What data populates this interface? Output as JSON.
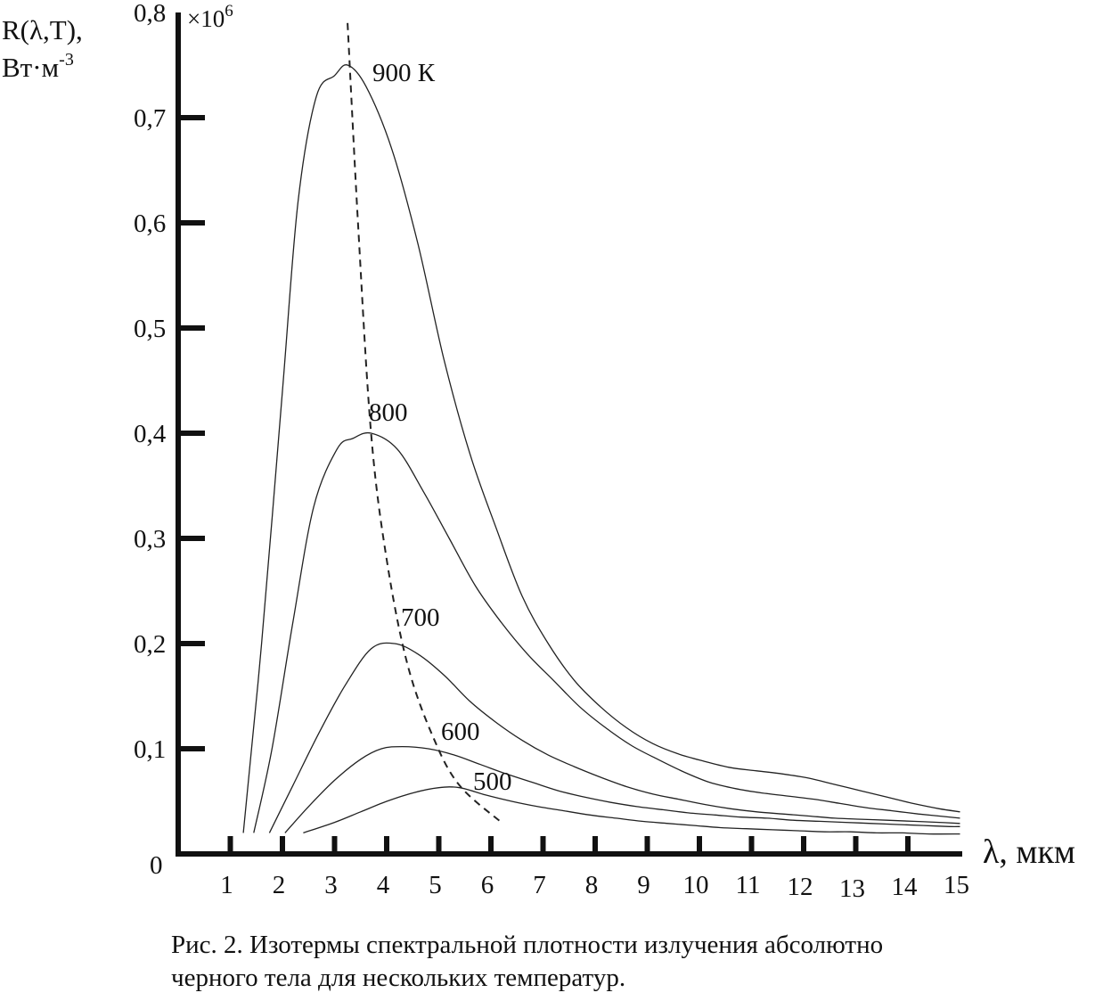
{
  "chart_data": {
    "type": "line",
    "title": "",
    "ylabel_lines": [
      "R(λ,T),",
      "Вт·м"
    ],
    "ylabel_unit_exponent": "-3",
    "y_multiplier": "×10",
    "y_multiplier_exponent": "6",
    "xlabel": "λ, мкм",
    "x_origin_label": "0",
    "xlim": [
      0,
      15
    ],
    "ylim": [
      0,
      0.8
    ],
    "x_ticks": [
      {
        "value": 1,
        "label": "1"
      },
      {
        "value": 2,
        "label": "2"
      },
      {
        "value": 3,
        "label": "3"
      },
      {
        "value": 4,
        "label": "4"
      },
      {
        "value": 5,
        "label": "5"
      },
      {
        "value": 6,
        "label": "6"
      },
      {
        "value": 7,
        "label": "7"
      },
      {
        "value": 8,
        "label": "8"
      },
      {
        "value": 9,
        "label": "9"
      },
      {
        "value": 10,
        "label": "10"
      },
      {
        "value": 11,
        "label": "11"
      },
      {
        "value": 12,
        "label": "12"
      },
      {
        "value": 13,
        "label": "13"
      },
      {
        "value": 14,
        "label": "14"
      },
      {
        "value": 15,
        "label": "15"
      }
    ],
    "y_ticks": [
      {
        "value": 0.1,
        "label": "0,1"
      },
      {
        "value": 0.2,
        "label": "0,2"
      },
      {
        "value": 0.3,
        "label": "0,3"
      },
      {
        "value": 0.4,
        "label": "0,4"
      },
      {
        "value": 0.5,
        "label": "0,5"
      },
      {
        "value": 0.6,
        "label": "0,6"
      },
      {
        "value": 0.7,
        "label": "0,7"
      },
      {
        "value": 0.8,
        "label": "0,8"
      }
    ],
    "series": [
      {
        "name": "900 К",
        "x": [
          1.25,
          1.6,
          2.0,
          2.3,
          2.65,
          3.0,
          3.25,
          3.6,
          4.1,
          4.6,
          5.1,
          5.6,
          6.1,
          6.6,
          7.1,
          7.6,
          8.1,
          8.6,
          9.1,
          9.6,
          10.1,
          10.6,
          11.1,
          11.6,
          12.1,
          12.6,
          13.1,
          13.6,
          14.1,
          14.6,
          15.0
        ],
        "y": [
          0.02,
          0.2,
          0.44,
          0.62,
          0.72,
          0.74,
          0.75,
          0.73,
          0.67,
          0.58,
          0.47,
          0.38,
          0.31,
          0.245,
          0.2,
          0.165,
          0.14,
          0.12,
          0.105,
          0.095,
          0.088,
          0.082,
          0.079,
          0.076,
          0.072,
          0.066,
          0.06,
          0.054,
          0.048,
          0.043,
          0.04
        ]
      },
      {
        "name": "800",
        "x": [
          1.45,
          1.8,
          2.2,
          2.6,
          3.05,
          3.35,
          3.7,
          4.2,
          4.7,
          5.2,
          5.7,
          6.2,
          6.7,
          7.2,
          7.7,
          8.2,
          8.7,
          9.2,
          9.7,
          10.2,
          10.7,
          11.2,
          11.7,
          12.2,
          12.7,
          13.2,
          13.7,
          14.2,
          14.6,
          15.0
        ],
        "y": [
          0.02,
          0.1,
          0.22,
          0.33,
          0.385,
          0.395,
          0.4,
          0.385,
          0.345,
          0.3,
          0.255,
          0.22,
          0.19,
          0.165,
          0.14,
          0.12,
          0.103,
          0.09,
          0.078,
          0.068,
          0.062,
          0.058,
          0.055,
          0.052,
          0.048,
          0.044,
          0.041,
          0.038,
          0.036,
          0.034
        ]
      },
      {
        "name": "700",
        "x": [
          1.75,
          2.2,
          2.7,
          3.2,
          3.7,
          4.15,
          4.6,
          5.1,
          5.6,
          6.1,
          6.6,
          7.1,
          7.6,
          8.1,
          8.6,
          9.1,
          9.6,
          10.1,
          10.6,
          11.1,
          11.6,
          12.1,
          12.6,
          13.1,
          13.6,
          14.1,
          14.6,
          15.0
        ],
        "y": [
          0.02,
          0.065,
          0.115,
          0.16,
          0.195,
          0.2,
          0.19,
          0.17,
          0.145,
          0.125,
          0.108,
          0.094,
          0.083,
          0.073,
          0.064,
          0.057,
          0.052,
          0.047,
          0.043,
          0.04,
          0.038,
          0.036,
          0.034,
          0.033,
          0.032,
          0.031,
          0.03,
          0.029
        ]
      },
      {
        "name": "600",
        "x": [
          2.05,
          2.5,
          3.0,
          3.5,
          3.9,
          4.3,
          4.8,
          5.3,
          5.8,
          6.3,
          6.8,
          7.3,
          7.8,
          8.3,
          8.8,
          9.3,
          9.8,
          10.3,
          10.8,
          11.3,
          11.8,
          12.3,
          12.8,
          13.3,
          13.8,
          14.3,
          14.8,
          15.0
        ],
        "y": [
          0.02,
          0.045,
          0.07,
          0.09,
          0.1,
          0.102,
          0.1,
          0.094,
          0.085,
          0.076,
          0.068,
          0.06,
          0.054,
          0.049,
          0.045,
          0.042,
          0.039,
          0.037,
          0.035,
          0.034,
          0.032,
          0.031,
          0.03,
          0.029,
          0.028,
          0.027,
          0.026,
          0.026
        ]
      },
      {
        "name": "500",
        "x": [
          2.4,
          3.0,
          3.5,
          4.0,
          4.5,
          5.0,
          5.4,
          5.9,
          6.4,
          6.9,
          7.4,
          7.9,
          8.4,
          8.9,
          9.4,
          9.9,
          10.4,
          10.9,
          11.4,
          11.9,
          12.4,
          12.9,
          13.4,
          13.9,
          14.4,
          15.0
        ],
        "y": [
          0.02,
          0.03,
          0.04,
          0.05,
          0.058,
          0.063,
          0.063,
          0.056,
          0.05,
          0.045,
          0.041,
          0.037,
          0.034,
          0.031,
          0.029,
          0.027,
          0.025,
          0.024,
          0.023,
          0.022,
          0.021,
          0.021,
          0.02,
          0.02,
          0.019,
          0.019
        ]
      }
    ],
    "wien_line": {
      "x": [
        3.25,
        3.45,
        3.7,
        4.0,
        4.4,
        4.9,
        5.4,
        6.2
      ],
      "y": [
        0.79,
        0.6,
        0.4,
        0.28,
        0.18,
        0.11,
        0.065,
        0.03
      ]
    },
    "colors": {
      "line": "#222222",
      "axis": "#111111",
      "background": "#ffffff"
    }
  },
  "caption": {
    "line1": "Рис. 2. Изотермы спектральной плотности излучения абсолютно",
    "line2": "черного тела для нескольких температур."
  }
}
